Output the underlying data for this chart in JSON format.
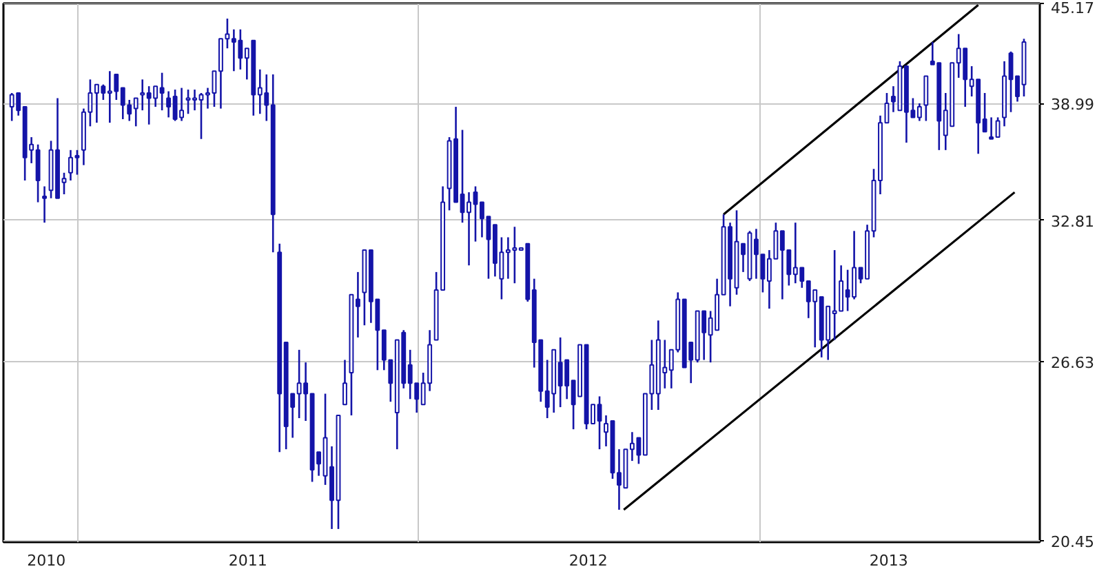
{
  "chart_data": {
    "type": "candlestick",
    "color": "#1414a8",
    "log": "y",
    "grid": true,
    "xlim": [
      "2010-10-13",
      "2013-10-28"
    ],
    "xticks": [
      {
        "value": "2010-11-28",
        "label": "2010"
      },
      {
        "value": "2011-01-01",
        "label": null
      },
      {
        "value": "2011-07-02",
        "label": "2011"
      },
      {
        "value": "2012-01-01",
        "label": null
      },
      {
        "value": "2012-07-01",
        "label": "2012"
      },
      {
        "value": "2013-01-01",
        "label": null
      },
      {
        "value": "2013-05-19",
        "label": "2013"
      }
    ],
    "ylim": [
      20.4,
      45.2
    ],
    "yticks": [
      20.45,
      26.63,
      32.81,
      38.99,
      45.17
    ],
    "x": [
      "2010-10-22",
      "2010-10-29",
      "2010-11-05",
      "2010-11-12",
      "2010-11-19",
      "2010-11-26",
      "2010-12-03",
      "2010-12-10",
      "2010-12-17",
      "2010-12-24",
      "2010-12-31",
      "2011-01-07",
      "2011-01-14",
      "2011-01-21",
      "2011-01-28",
      "2011-02-04",
      "2011-02-11",
      "2011-02-18",
      "2011-02-25",
      "2011-03-04",
      "2011-03-11",
      "2011-03-18",
      "2011-03-25",
      "2011-04-01",
      "2011-04-08",
      "2011-04-15",
      "2011-04-22",
      "2011-04-29",
      "2011-05-06",
      "2011-05-13",
      "2011-05-20",
      "2011-05-27",
      "2011-06-03",
      "2011-06-10",
      "2011-06-17",
      "2011-06-24",
      "2011-07-01",
      "2011-07-08",
      "2011-07-15",
      "2011-07-22",
      "2011-07-29",
      "2011-08-05",
      "2011-08-12",
      "2011-08-19",
      "2011-08-26",
      "2011-09-02",
      "2011-09-09",
      "2011-09-16",
      "2011-09-23",
      "2011-09-30",
      "2011-10-07",
      "2011-10-14",
      "2011-10-21",
      "2011-10-28",
      "2011-11-04",
      "2011-11-11",
      "2011-11-18",
      "2011-11-25",
      "2011-12-02",
      "2011-12-09",
      "2011-12-16",
      "2011-12-23",
      "2011-12-30",
      "2012-01-06",
      "2012-01-13",
      "2012-01-20",
      "2012-01-27",
      "2012-02-03",
      "2012-02-10",
      "2012-02-17",
      "2012-02-24",
      "2012-03-02",
      "2012-03-09",
      "2012-03-16",
      "2012-03-23",
      "2012-03-30",
      "2012-04-06",
      "2012-04-13",
      "2012-04-20",
      "2012-04-27",
      "2012-05-04",
      "2012-05-11",
      "2012-05-18",
      "2012-05-25",
      "2012-06-01",
      "2012-06-08",
      "2012-06-15",
      "2012-06-22",
      "2012-06-29",
      "2012-07-06",
      "2012-07-13",
      "2012-07-20",
      "2012-07-27",
      "2012-08-03",
      "2012-08-10",
      "2012-08-17",
      "2012-08-24",
      "2012-08-31",
      "2012-09-07",
      "2012-09-14",
      "2012-09-21",
      "2012-09-28",
      "2012-10-05",
      "2012-10-12",
      "2012-10-19",
      "2012-10-26",
      "2012-11-02",
      "2012-11-09",
      "2012-11-16",
      "2012-11-23",
      "2012-11-30",
      "2012-12-07",
      "2012-12-14",
      "2012-12-21",
      "2012-12-28",
      "2013-01-04",
      "2013-01-11",
      "2013-01-18",
      "2013-01-25",
      "2013-02-01",
      "2013-02-08",
      "2013-02-15",
      "2013-02-22",
      "2013-03-01",
      "2013-03-08",
      "2013-03-15",
      "2013-03-22",
      "2013-03-29",
      "2013-04-05",
      "2013-04-12",
      "2013-04-19",
      "2013-04-26",
      "2013-05-03",
      "2013-05-10",
      "2013-05-17",
      "2013-05-24",
      "2013-05-31",
      "2013-06-07",
      "2013-06-14",
      "2013-06-21",
      "2013-06-28",
      "2013-07-05",
      "2013-07-12",
      "2013-07-19",
      "2013-07-26",
      "2013-08-02",
      "2013-08-09",
      "2013-08-16",
      "2013-08-23",
      "2013-08-30",
      "2013-09-06",
      "2013-09-13",
      "2013-09-20",
      "2013-09-27",
      "2013-10-04",
      "2013-10-11"
    ],
    "ohlc": [
      [
        38.8,
        39.6,
        38.0,
        39.5
      ],
      [
        39.6,
        39.6,
        38.3,
        38.6
      ],
      [
        38.8,
        38.8,
        34.8,
        36.0
      ],
      [
        36.4,
        37.1,
        35.7,
        36.7
      ],
      [
        36.4,
        36.7,
        33.7,
        34.8
      ],
      [
        34.0,
        34.5,
        32.7,
        33.9
      ],
      [
        34.3,
        36.9,
        33.9,
        36.4
      ],
      [
        36.4,
        39.3,
        33.9,
        33.9
      ],
      [
        34.7,
        35.2,
        34.1,
        34.9
      ],
      [
        35.2,
        36.4,
        34.8,
        36.0
      ],
      [
        36.1,
        36.4,
        35.1,
        36.0
      ],
      [
        36.4,
        38.7,
        35.6,
        38.5
      ],
      [
        38.5,
        40.4,
        37.7,
        39.6
      ],
      [
        39.6,
        40.1,
        37.9,
        40.1
      ],
      [
        40.0,
        40.1,
        39.2,
        39.6
      ],
      [
        39.6,
        40.9,
        37.9,
        39.7
      ],
      [
        40.7,
        40.7,
        39.2,
        39.7
      ],
      [
        39.9,
        39.9,
        38.1,
        38.9
      ],
      [
        38.9,
        39.2,
        38.0,
        38.4
      ],
      [
        38.7,
        39.3,
        37.7,
        39.3
      ],
      [
        39.5,
        40.4,
        38.6,
        39.6
      ],
      [
        39.6,
        40.0,
        37.8,
        39.3
      ],
      [
        39.3,
        40.0,
        38.8,
        40.0
      ],
      [
        39.9,
        40.8,
        38.6,
        39.6
      ],
      [
        39.3,
        39.7,
        38.2,
        38.8
      ],
      [
        39.4,
        39.8,
        38.0,
        38.1
      ],
      [
        38.2,
        39.9,
        38.0,
        38.6
      ],
      [
        39.2,
        39.8,
        38.4,
        39.3
      ],
      [
        39.2,
        39.8,
        38.6,
        39.3
      ],
      [
        39.2,
        39.6,
        37.0,
        39.5
      ],
      [
        39.5,
        39.9,
        38.7,
        39.6
      ],
      [
        39.6,
        40.9,
        38.8,
        40.9
      ],
      [
        40.9,
        42.9,
        38.7,
        42.9
      ],
      [
        42.9,
        44.2,
        42.3,
        43.2
      ],
      [
        42.9,
        43.5,
        40.9,
        42.7
      ],
      [
        42.8,
        43.5,
        41.0,
        41.7
      ],
      [
        41.7,
        42.3,
        40.4,
        42.3
      ],
      [
        42.8,
        42.8,
        38.3,
        39.5
      ],
      [
        39.5,
        41.0,
        38.4,
        39.9
      ],
      [
        39.6,
        40.7,
        38.0,
        38.9
      ],
      [
        38.9,
        40.7,
        31.3,
        33.1
      ],
      [
        31.3,
        31.7,
        23.3,
        25.4
      ],
      [
        27.4,
        27.4,
        23.4,
        24.2
      ],
      [
        25.4,
        25.4,
        23.8,
        24.9
      ],
      [
        25.4,
        27.1,
        24.5,
        25.8
      ],
      [
        25.8,
        26.6,
        24.4,
        25.4
      ],
      [
        25.4,
        25.4,
        22.3,
        22.7
      ],
      [
        23.3,
        23.3,
        22.5,
        22.9
      ],
      [
        22.5,
        25.4,
        22.2,
        23.8
      ],
      [
        22.8,
        23.5,
        20.8,
        21.7
      ],
      [
        21.7,
        24.6,
        20.8,
        24.6
      ],
      [
        25.0,
        26.7,
        25.0,
        25.8
      ],
      [
        26.2,
        29.4,
        24.6,
        29.4
      ],
      [
        29.2,
        30.4,
        27.6,
        28.9
      ],
      [
        29.5,
        31.4,
        28.1,
        31.4
      ],
      [
        31.4,
        31.4,
        28.2,
        29.1
      ],
      [
        29.2,
        29.2,
        26.3,
        27.9
      ],
      [
        27.9,
        27.9,
        26.3,
        26.7
      ],
      [
        26.7,
        26.7,
        25.1,
        25.8
      ],
      [
        24.7,
        27.5,
        23.4,
        27.5
      ],
      [
        27.8,
        27.9,
        25.6,
        25.8
      ],
      [
        26.5,
        27.1,
        25.2,
        25.8
      ],
      [
        25.8,
        25.8,
        24.7,
        25.2
      ],
      [
        25.0,
        26.2,
        25.0,
        25.8
      ],
      [
        25.8,
        27.9,
        25.5,
        27.3
      ],
      [
        27.5,
        30.4,
        27.5,
        29.6
      ],
      [
        29.6,
        34.5,
        29.6,
        33.7
      ],
      [
        34.4,
        37.1,
        33.3,
        36.9
      ],
      [
        37.0,
        38.8,
        33.7,
        33.7
      ],
      [
        34.1,
        37.5,
        32.7,
        33.2
      ],
      [
        33.2,
        34.2,
        30.7,
        33.7
      ],
      [
        34.2,
        34.5,
        31.8,
        33.6
      ],
      [
        33.7,
        33.7,
        32.0,
        32.9
      ],
      [
        33.0,
        33.0,
        30.1,
        31.9
      ],
      [
        32.6,
        32.6,
        30.2,
        30.8
      ],
      [
        30.1,
        32.0,
        29.2,
        31.3
      ],
      [
        31.3,
        32.0,
        30.1,
        31.4
      ],
      [
        31.4,
        32.5,
        29.9,
        31.5
      ],
      [
        31.4,
        31.5,
        31.4,
        31.5
      ],
      [
        31.7,
        31.7,
        29.1,
        29.2
      ],
      [
        29.6,
        30.1,
        26.4,
        27.4
      ],
      [
        27.5,
        27.5,
        25.1,
        25.5
      ],
      [
        25.5,
        26.7,
        24.5,
        24.9
      ],
      [
        25.4,
        27.1,
        24.7,
        27.1
      ],
      [
        26.6,
        27.6,
        24.9,
        25.7
      ],
      [
        26.7,
        26.7,
        25.2,
        25.7
      ],
      [
        25.9,
        25.9,
        24.1,
        25.0
      ],
      [
        25.3,
        27.3,
        25.3,
        27.3
      ],
      [
        27.3,
        27.3,
        24.1,
        24.3
      ],
      [
        24.3,
        25.0,
        24.3,
        25.0
      ],
      [
        25.0,
        25.3,
        23.4,
        24.4
      ],
      [
        24.0,
        24.6,
        23.5,
        24.3
      ],
      [
        24.4,
        24.4,
        22.4,
        22.6
      ],
      [
        22.6,
        23.4,
        21.4,
        22.2
      ],
      [
        22.1,
        23.4,
        22.1,
        23.4
      ],
      [
        23.4,
        24.0,
        23.0,
        23.6
      ],
      [
        23.8,
        23.8,
        22.9,
        23.2
      ],
      [
        23.2,
        25.4,
        23.2,
        25.4
      ],
      [
        25.4,
        27.5,
        24.8,
        26.5
      ],
      [
        25.4,
        28.3,
        24.8,
        27.5
      ],
      [
        26.2,
        27.5,
        25.6,
        26.4
      ],
      [
        26.3,
        27.1,
        25.6,
        27.1
      ],
      [
        27.1,
        29.5,
        27.0,
        29.2
      ],
      [
        29.2,
        29.2,
        26.4,
        26.4
      ],
      [
        27.4,
        27.4,
        25.8,
        26.7
      ],
      [
        26.7,
        28.7,
        26.6,
        28.7
      ],
      [
        28.7,
        28.7,
        26.7,
        27.8
      ],
      [
        27.7,
        28.7,
        26.6,
        28.4
      ],
      [
        27.9,
        30.1,
        27.9,
        29.4
      ],
      [
        29.4,
        33.1,
        29.4,
        32.5
      ],
      [
        32.5,
        32.7,
        28.9,
        30.1
      ],
      [
        29.7,
        33.3,
        29.4,
        31.8
      ],
      [
        31.7,
        31.7,
        30.4,
        31.2
      ],
      [
        30.1,
        32.3,
        30.0,
        32.2
      ],
      [
        31.9,
        32.4,
        30.1,
        31.2
      ],
      [
        31.2,
        31.2,
        29.5,
        30.1
      ],
      [
        30.0,
        31.4,
        28.8,
        31.0
      ],
      [
        31.0,
        32.7,
        31.0,
        32.3
      ],
      [
        32.3,
        32.3,
        29.2,
        31.4
      ],
      [
        31.4,
        31.4,
        29.8,
        30.3
      ],
      [
        30.3,
        32.7,
        29.9,
        30.6
      ],
      [
        30.6,
        30.6,
        29.7,
        30.0
      ],
      [
        30.0,
        30.0,
        28.4,
        29.1
      ],
      [
        29.1,
        29.6,
        27.2,
        29.6
      ],
      [
        29.3,
        29.3,
        26.8,
        27.5
      ],
      [
        27.5,
        28.9,
        26.7,
        28.9
      ],
      [
        28.6,
        31.4,
        27.5,
        28.7
      ],
      [
        28.7,
        30.7,
        28.7,
        30.0
      ],
      [
        29.6,
        30.5,
        28.7,
        29.3
      ],
      [
        29.3,
        32.3,
        29.2,
        30.6
      ],
      [
        30.6,
        30.6,
        29.9,
        30.1
      ],
      [
        30.1,
        32.6,
        30.1,
        32.3
      ],
      [
        32.3,
        35.4,
        32.0,
        34.8
      ],
      [
        34.8,
        38.3,
        34.1,
        37.9
      ],
      [
        37.9,
        39.6,
        37.9,
        39.0
      ],
      [
        39.4,
        40.0,
        38.5,
        39.1
      ],
      [
        38.6,
        41.5,
        38.6,
        41.2
      ],
      [
        41.2,
        41.2,
        36.8,
        38.5
      ],
      [
        38.6,
        39.3,
        38.2,
        38.2
      ],
      [
        38.2,
        39.0,
        38.0,
        38.8
      ],
      [
        38.9,
        40.6,
        38.0,
        40.6
      ],
      [
        41.5,
        42.7,
        41.3,
        41.3
      ],
      [
        41.4,
        41.4,
        36.4,
        38.0
      ],
      [
        37.2,
        39.6,
        36.4,
        38.6
      ],
      [
        37.7,
        41.4,
        37.7,
        41.4
      ],
      [
        41.4,
        43.2,
        40.5,
        42.3
      ],
      [
        42.3,
        42.3,
        38.8,
        40.4
      ],
      [
        40.0,
        41.2,
        39.4,
        40.4
      ],
      [
        40.4,
        40.4,
        36.2,
        37.9
      ],
      [
        38.1,
        39.6,
        37.4,
        37.4
      ],
      [
        37.1,
        38.2,
        37.0,
        37.0
      ],
      [
        37.1,
        38.2,
        37.1,
        38.0
      ],
      [
        38.2,
        41.5,
        37.7,
        40.6
      ],
      [
        42.0,
        42.1,
        38.5,
        40.4
      ],
      [
        40.6,
        40.6,
        39.1,
        39.4
      ],
      [
        40.1,
        42.9,
        39.4,
        42.7
      ]
    ],
    "series": [
      {
        "type": "line",
        "color": "#000000",
        "x": [
          "2012-11-23",
          "2013-08-23"
        ],
        "values": [
          33.1,
          45.1
        ]
      },
      {
        "type": "line",
        "color": "#000000",
        "x": [
          "2012-08-08",
          "2013-10-01"
        ],
        "values": [
          21.4,
          34.2
        ]
      }
    ]
  }
}
